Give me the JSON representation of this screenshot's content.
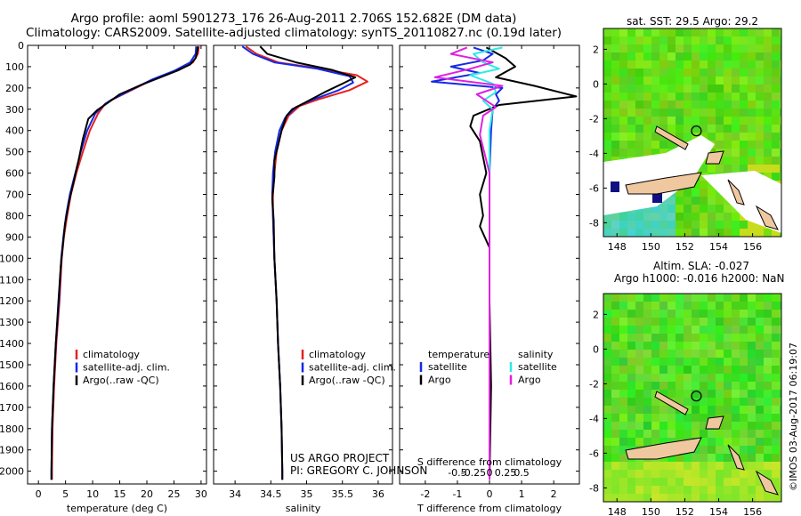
{
  "header": {
    "line1": "Argo profile: aoml 5901273_176 26-Aug-2011 2.706S 152.682E (DM data)",
    "line2": "Climatology: CARS2009. Satellite-adjusted climatology: synTS_20110827.nc (0.19d later)"
  },
  "colors": {
    "red": "#e8201e",
    "blue": "#1428e6",
    "black": "#000000",
    "magenta": "#e020e0",
    "cyan": "#30e8e8",
    "land": "#f0c8a0",
    "bg": "#ffffff"
  },
  "chart_data": [
    {
      "type": "line",
      "name": "temperature-profile",
      "xlabel": "temperature (deg C)",
      "ylabel": "",
      "xlim": [
        -2,
        31
      ],
      "ylim": [
        2060,
        0
      ],
      "xticks": [
        0,
        5,
        10,
        15,
        20,
        25,
        30
      ],
      "xtick_labels": [
        "0",
        "5",
        "10",
        "15",
        "20",
        "25",
        "30"
      ],
      "yticks": [
        0,
        100,
        200,
        300,
        400,
        500,
        600,
        700,
        800,
        900,
        1000,
        1100,
        1200,
        1300,
        1400,
        1500,
        1600,
        1700,
        1800,
        1900,
        2000
      ],
      "ytick_labels": [
        "0",
        "100",
        "200",
        "300",
        "400",
        "500",
        "600",
        "700",
        "800",
        "900",
        "1000",
        "1100",
        "1200",
        "1300",
        "1400",
        "1500",
        "1600",
        "1700",
        "1800",
        "1900",
        "2000"
      ],
      "legend": [
        "climatology",
        "satellite-adj. clim.",
        "Argo(..raw -QC)"
      ],
      "series": [
        {
          "name": "climatology",
          "color": "red",
          "points": [
            [
              29.6,
              5
            ],
            [
              29.4,
              40
            ],
            [
              28.5,
              80
            ],
            [
              26,
              115
            ],
            [
              22,
              150
            ],
            [
              18,
              200
            ],
            [
              14,
              250
            ],
            [
              12.3,
              275
            ],
            [
              11,
              320
            ],
            [
              9.5,
              400
            ],
            [
              8.2,
              500
            ],
            [
              7,
              600
            ],
            [
              6,
              700
            ],
            [
              5.3,
              800
            ],
            [
              4.7,
              900
            ],
            [
              4.3,
              1000
            ],
            [
              3.9,
              1200
            ],
            [
              3.3,
              1400
            ],
            [
              2.9,
              1600
            ],
            [
              2.6,
              1800
            ],
            [
              2.5,
              2000
            ],
            [
              2.5,
              2040
            ]
          ]
        },
        {
          "name": "satellite-adj. clim.",
          "color": "blue",
          "points": [
            [
              29.1,
              5
            ],
            [
              29,
              40
            ],
            [
              28,
              80
            ],
            [
              25,
              120
            ],
            [
              21,
              160
            ],
            [
              17,
              210
            ],
            [
              13.5,
              255
            ],
            [
              12.3,
              275
            ],
            [
              10.5,
              320
            ],
            [
              9,
              400
            ],
            [
              7.8,
              500
            ],
            [
              6.8,
              600
            ],
            [
              5.8,
              700
            ],
            [
              5.1,
              800
            ],
            [
              4.6,
              900
            ],
            [
              4.2,
              1000
            ],
            [
              3.8,
              1200
            ],
            [
              3.2,
              1400
            ],
            [
              2.8,
              1600
            ],
            [
              2.5,
              1800
            ],
            [
              2.4,
              2000
            ],
            [
              2.4,
              2040
            ]
          ]
        },
        {
          "name": "Argo(..raw -QC)",
          "color": "black",
          "points": [
            [
              29.4,
              5
            ],
            [
              29.3,
              30
            ],
            [
              29,
              60
            ],
            [
              28,
              90
            ],
            [
              25.5,
              120
            ],
            [
              22.5,
              150
            ],
            [
              19,
              185
            ],
            [
              15,
              230
            ],
            [
              12.8,
              270
            ],
            [
              10.8,
              305
            ],
            [
              9.2,
              345
            ],
            [
              8.2,
              440
            ],
            [
              7.4,
              540
            ],
            [
              6.4,
              650
            ],
            [
              5.6,
              740
            ],
            [
              4.9,
              840
            ],
            [
              4.5,
              940
            ],
            [
              4.1,
              1040
            ],
            [
              3.7,
              1200
            ],
            [
              3.2,
              1400
            ],
            [
              2.8,
              1600
            ],
            [
              2.5,
              1800
            ],
            [
              2.4,
              2000
            ],
            [
              2.4,
              2040
            ]
          ]
        }
      ]
    },
    {
      "type": "line",
      "name": "salinity-profile",
      "xlabel": "salinity",
      "xlim": [
        33.7,
        36.2
      ],
      "ylim": [
        2060,
        0
      ],
      "xticks": [
        34,
        34.5,
        35,
        35.5,
        36
      ],
      "xtick_labels": [
        "34",
        "34.5",
        "35",
        "35.5",
        "36"
      ],
      "legend": [
        "climatology",
        "satellite-adj. clim.",
        "Argo(..raw -QC)"
      ],
      "series": [
        {
          "name": "climatology",
          "color": "red",
          "points": [
            [
              34.15,
              5
            ],
            [
              34.3,
              40
            ],
            [
              34.6,
              80
            ],
            [
              35.2,
              110
            ],
            [
              35.7,
              140
            ],
            [
              35.85,
              170
            ],
            [
              35.6,
              210
            ],
            [
              35.15,
              255
            ],
            [
              34.9,
              285
            ],
            [
              34.75,
              330
            ],
            [
              34.65,
              400
            ],
            [
              34.58,
              500
            ],
            [
              34.55,
              600
            ],
            [
              34.53,
              700
            ],
            [
              34.53,
              800
            ],
            [
              34.55,
              1000
            ],
            [
              34.58,
              1200
            ],
            [
              34.6,
              1400
            ],
            [
              34.63,
              1600
            ],
            [
              34.65,
              1800
            ],
            [
              34.66,
              2000
            ],
            [
              34.66,
              2040
            ]
          ]
        },
        {
          "name": "satellite-adj. clim.",
          "color": "blue",
          "points": [
            [
              34.1,
              5
            ],
            [
              34.25,
              40
            ],
            [
              34.55,
              80
            ],
            [
              35.15,
              110
            ],
            [
              35.6,
              145
            ],
            [
              35.65,
              175
            ],
            [
              35.45,
              210
            ],
            [
              35.05,
              260
            ],
            [
              34.85,
              290
            ],
            [
              34.7,
              340
            ],
            [
              34.62,
              400
            ],
            [
              34.56,
              500
            ],
            [
              34.53,
              600
            ],
            [
              34.52,
              700
            ],
            [
              34.53,
              800
            ],
            [
              34.55,
              1000
            ],
            [
              34.58,
              1200
            ],
            [
              34.6,
              1400
            ],
            [
              34.63,
              1600
            ],
            [
              34.65,
              1800
            ],
            [
              34.66,
              2000
            ],
            [
              34.66,
              2040
            ]
          ]
        },
        {
          "name": "Argo(..raw -QC)",
          "color": "black",
          "points": [
            [
              34.35,
              5
            ],
            [
              34.45,
              40
            ],
            [
              34.85,
              80
            ],
            [
              35.35,
              115
            ],
            [
              35.68,
              150
            ],
            [
              35.5,
              180
            ],
            [
              35.25,
              220
            ],
            [
              35.0,
              265
            ],
            [
              34.8,
              300
            ],
            [
              34.72,
              330
            ],
            [
              34.65,
              400
            ],
            [
              34.6,
              470
            ],
            [
              34.55,
              540
            ],
            [
              34.55,
              620
            ],
            [
              34.52,
              720
            ],
            [
              34.54,
              820
            ],
            [
              34.55,
              1000
            ],
            [
              34.58,
              1200
            ],
            [
              34.6,
              1400
            ],
            [
              34.63,
              1600
            ],
            [
              34.65,
              1800
            ],
            [
              34.66,
              2000
            ],
            [
              34.66,
              2040
            ]
          ]
        }
      ],
      "annotation": [
        "US ARGO PROJECT",
        "PI: GREGORY C. JOHNSON"
      ]
    },
    {
      "type": "line",
      "name": "difference-from-climatology",
      "xlabel": "T difference from climatology",
      "xlabel_secondary": "S difference from climatology",
      "xlim_T": [
        -2.8,
        2.8
      ],
      "xticks_T": [
        -2,
        -1,
        0,
        1,
        2
      ],
      "xtick_labels_T": [
        "-2",
        "-1",
        "0",
        "1",
        "2"
      ],
      "xticks_S": [
        -0.5,
        -0.25,
        0,
        0.25,
        0.5
      ],
      "xtick_labels_S": [
        "-0.5",
        "-0.25",
        "0",
        "0.25",
        "0.5"
      ],
      "ylim": [
        2060,
        0
      ],
      "legend_temperature": {
        "title": "temperature",
        "items": [
          "satellite",
          "Argo"
        ]
      },
      "legend_salinity": {
        "title": "salinity",
        "items": [
          "satellite",
          "Argo"
        ]
      },
      "series": [
        {
          "name": "temperature satellite",
          "color": "blue",
          "points": [
            [
              -0.5,
              10
            ],
            [
              0.1,
              40
            ],
            [
              -0.2,
              70
            ],
            [
              -1.2,
              100
            ],
            [
              -0.3,
              130
            ],
            [
              -1.8,
              170
            ],
            [
              0.4,
              200
            ],
            [
              0.2,
              230
            ],
            [
              0.3,
              260
            ],
            [
              0.1,
              300
            ],
            [
              0.05,
              400
            ],
            [
              0,
              600
            ],
            [
              0,
              1000
            ],
            [
              0,
              1500
            ],
            [
              0,
              2040
            ]
          ]
        },
        {
          "name": "temperature Argo",
          "color": "black",
          "points": [
            [
              -0.1,
              10
            ],
            [
              0.5,
              60
            ],
            [
              0.8,
              100
            ],
            [
              0.2,
              150
            ],
            [
              1.4,
              190
            ],
            [
              2.7,
              240
            ],
            [
              0.3,
              280
            ],
            [
              -0.5,
              330
            ],
            [
              -0.6,
              380
            ],
            [
              -0.3,
              450
            ],
            [
              -0.1,
              600
            ],
            [
              -0.3,
              700
            ],
            [
              -0.2,
              800
            ],
            [
              -0.3,
              850
            ],
            [
              0,
              950
            ],
            [
              0,
              1200
            ],
            [
              0.05,
              1600
            ],
            [
              0,
              2040
            ]
          ]
        },
        {
          "name": "salinity satellite",
          "color": "cyan",
          "points": [
            [
              0.2,
              10
            ],
            [
              -0.25,
              40
            ],
            [
              -0.1,
              80
            ],
            [
              0.15,
              110
            ],
            [
              -0.3,
              140
            ],
            [
              0.05,
              180
            ],
            [
              0.1,
              220
            ],
            [
              -0.1,
              260
            ],
            [
              0.05,
              300
            ],
            [
              0,
              400
            ],
            [
              0,
              600
            ],
            [
              0,
              1000
            ],
            [
              0,
              1500
            ],
            [
              0,
              2040
            ]
          ]
        },
        {
          "name": "salinity Argo",
          "color": "magenta",
          "points": [
            [
              -0.35,
              10
            ],
            [
              -0.6,
              40
            ],
            [
              0.05,
              80
            ],
            [
              -0.3,
              110
            ],
            [
              -0.85,
              150
            ],
            [
              0.2,
              190
            ],
            [
              -0.2,
              230
            ],
            [
              -0.05,
              260
            ],
            [
              0.1,
              290
            ],
            [
              -0.1,
              330
            ],
            [
              -0.15,
              420
            ],
            [
              0,
              600
            ],
            [
              0,
              1000
            ],
            [
              0,
              1500
            ],
            [
              0,
              2040
            ]
          ]
        }
      ]
    },
    {
      "type": "heatmap",
      "name": "sst-map",
      "title": "sat. SST: 29.5  Argo: 29.2",
      "xlim": [
        147.2,
        157.7
      ],
      "ylim": [
        -8.8,
        3.2
      ],
      "xticks": [
        148,
        150,
        152,
        154,
        156
      ],
      "xtick_labels": [
        "148",
        "150",
        "152",
        "154",
        "156"
      ],
      "yticks": [
        2,
        0,
        -2,
        -4,
        -6,
        -8
      ],
      "ytick_labels": [
        "2",
        "0",
        "-2",
        "-4",
        "-6",
        "-8"
      ],
      "argo_position": {
        "lon": 152.682,
        "lat": -2.706
      }
    },
    {
      "type": "heatmap",
      "name": "sla-map",
      "title_line1": "Altim. SLA: -0.027",
      "title_line2": "Argo h1000: -0.016 h2000: NaN",
      "xlim": [
        147.2,
        157.7
      ],
      "ylim": [
        -8.8,
        3.2
      ],
      "xticks": [
        148,
        150,
        152,
        154,
        156
      ],
      "xtick_labels": [
        "148",
        "150",
        "152",
        "154",
        "156"
      ],
      "yticks": [
        2,
        0,
        -2,
        -4,
        -6,
        -8
      ],
      "ytick_labels": [
        "2",
        "0",
        "-2",
        "-4",
        "-6",
        "-8"
      ],
      "argo_position": {
        "lon": 152.682,
        "lat": -2.706
      }
    }
  ],
  "credit": "©IMOS 03-Aug-2017 06:19:07"
}
